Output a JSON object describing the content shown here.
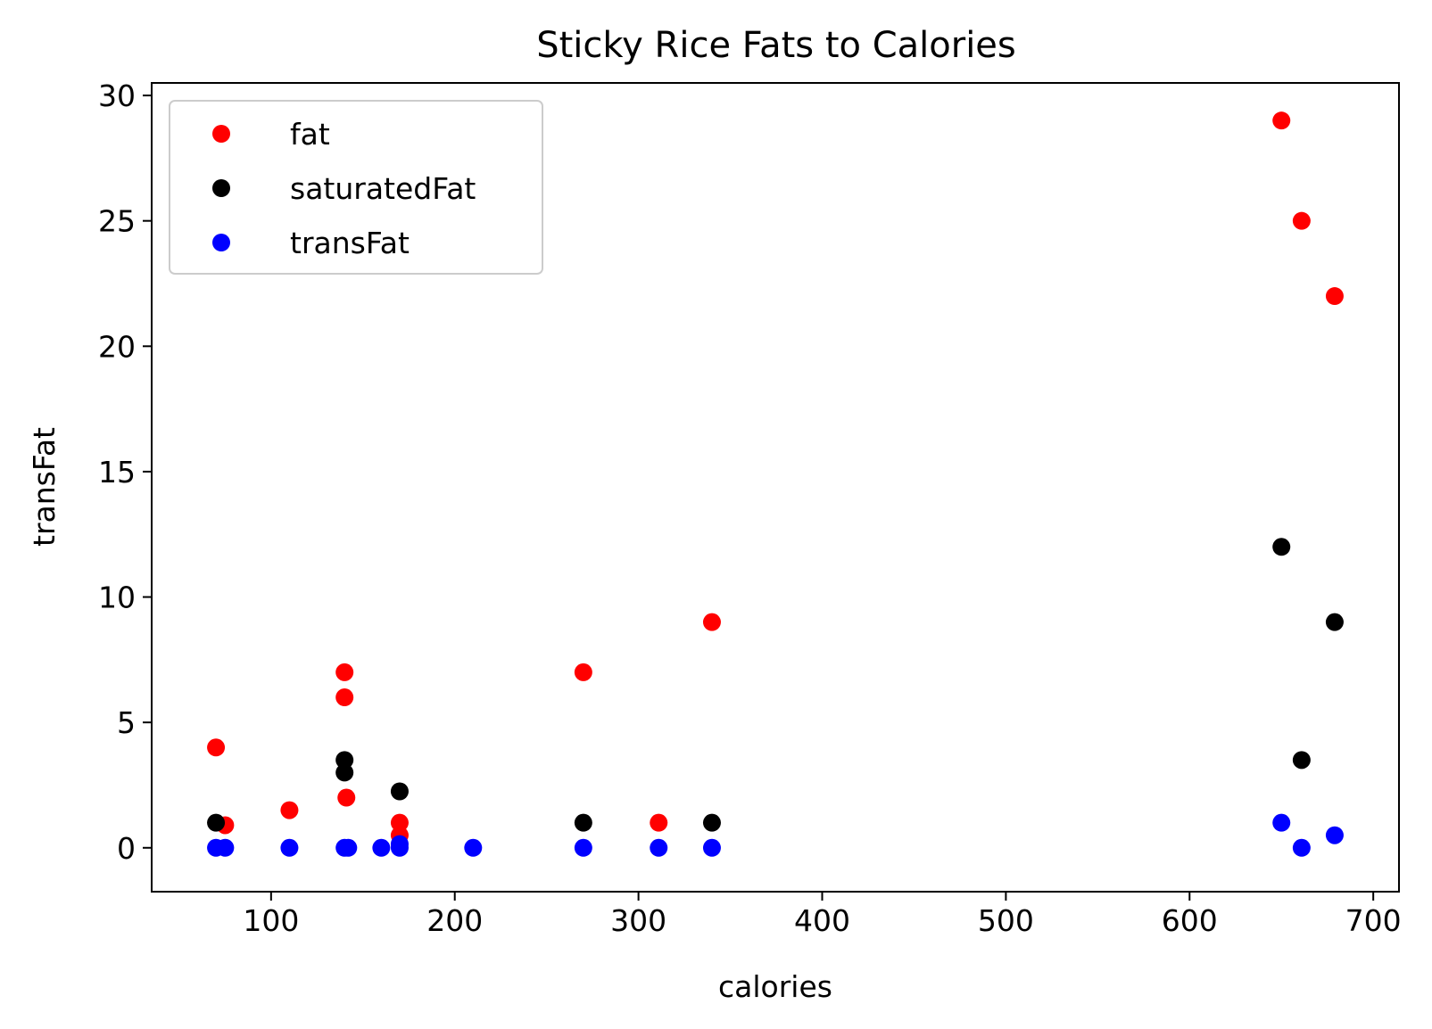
{
  "chart_data": {
    "type": "scatter",
    "title": "Sticky Rice Fats to Calories",
    "xlabel": "calories",
    "ylabel": "transFat",
    "xlim": [
      35,
      714
    ],
    "ylim": [
      -1.75,
      30.5
    ],
    "xticks": [
      100,
      200,
      300,
      400,
      500,
      600,
      700
    ],
    "yticks": [
      0,
      5,
      10,
      15,
      20,
      25,
      30
    ],
    "grid": false,
    "legend_position": "top-left",
    "series": [
      {
        "name": "fat",
        "color": "#ff0000",
        "points": [
          {
            "x": 70,
            "y": 4
          },
          {
            "x": 75,
            "y": 0.9
          },
          {
            "x": 110,
            "y": 1.5
          },
          {
            "x": 140,
            "y": 7
          },
          {
            "x": 140,
            "y": 6
          },
          {
            "x": 141,
            "y": 2
          },
          {
            "x": 170,
            "y": 1
          },
          {
            "x": 170,
            "y": 0.5
          },
          {
            "x": 270,
            "y": 7
          },
          {
            "x": 311,
            "y": 1
          },
          {
            "x": 340,
            "y": 9
          },
          {
            "x": 650,
            "y": 29
          },
          {
            "x": 661,
            "y": 25
          },
          {
            "x": 679,
            "y": 22
          }
        ]
      },
      {
        "name": "saturatedFat",
        "color": "#000000",
        "points": [
          {
            "x": 70,
            "y": 1
          },
          {
            "x": 140,
            "y": 3.5
          },
          {
            "x": 140,
            "y": 3
          },
          {
            "x": 170,
            "y": 2.25
          },
          {
            "x": 270,
            "y": 1
          },
          {
            "x": 340,
            "y": 1
          },
          {
            "x": 650,
            "y": 12
          },
          {
            "x": 661,
            "y": 3.5
          },
          {
            "x": 679,
            "y": 9
          }
        ]
      },
      {
        "name": "transFat",
        "color": "#0000ff",
        "points": [
          {
            "x": 70,
            "y": 0
          },
          {
            "x": 75,
            "y": 0
          },
          {
            "x": 110,
            "y": 0
          },
          {
            "x": 140,
            "y": 0
          },
          {
            "x": 142,
            "y": 0
          },
          {
            "x": 160,
            "y": 0
          },
          {
            "x": 170,
            "y": 0
          },
          {
            "x": 170,
            "y": 0.15
          },
          {
            "x": 210,
            "y": 0
          },
          {
            "x": 270,
            "y": 0
          },
          {
            "x": 311,
            "y": 0
          },
          {
            "x": 340,
            "y": 0
          },
          {
            "x": 650,
            "y": 1
          },
          {
            "x": 661,
            "y": 0
          },
          {
            "x": 679,
            "y": 0.5
          }
        ]
      }
    ]
  }
}
